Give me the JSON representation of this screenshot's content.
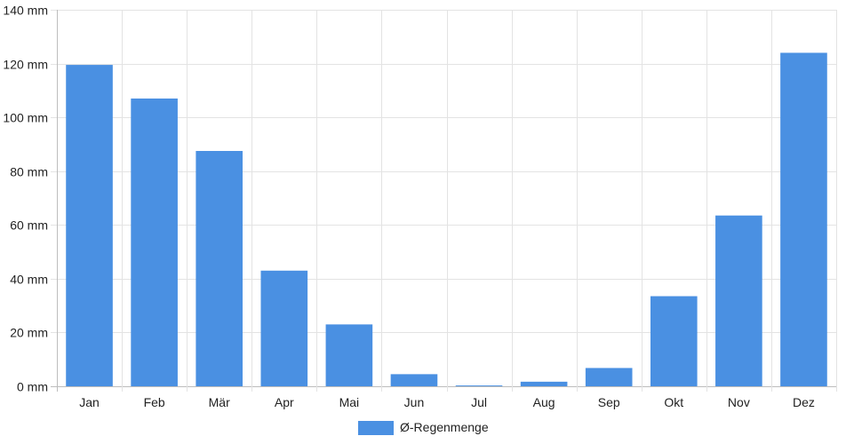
{
  "chart_data": {
    "type": "bar",
    "categories": [
      "Jan",
      "Feb",
      "Mär",
      "Apr",
      "Mai",
      "Jun",
      "Jul",
      "Aug",
      "Sep",
      "Okt",
      "Nov",
      "Dez"
    ],
    "series": [
      {
        "name": "Ø-Regenmenge",
        "color": "#4a90e2",
        "values": [
          119.5,
          107,
          87.5,
          43,
          23,
          4.5,
          0.3,
          1.7,
          6.8,
          33.5,
          63.5,
          124
        ]
      }
    ],
    "ylim": [
      0,
      140
    ],
    "yticks": [
      "0 mm",
      "20 mm",
      "40 mm",
      "60 mm",
      "80 mm",
      "100 mm",
      "120 mm",
      "140 mm"
    ],
    "grid": true,
    "legend_position": "bottom"
  }
}
